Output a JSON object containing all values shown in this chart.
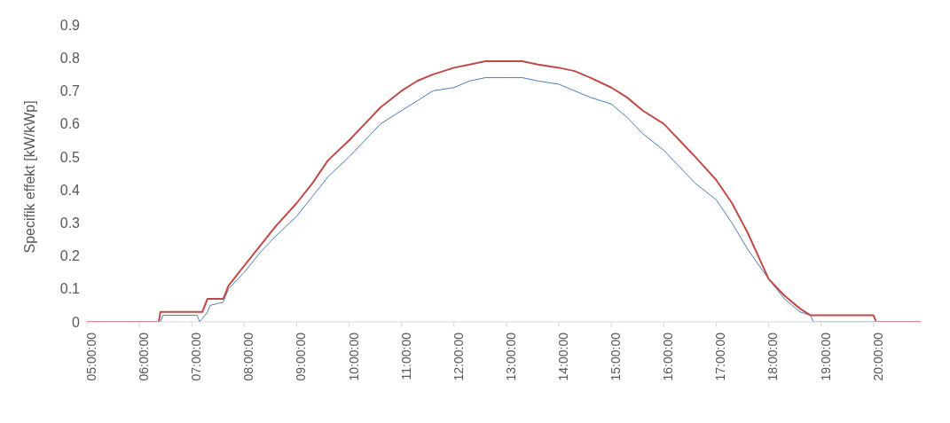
{
  "chart_data": {
    "type": "line",
    "ylabel": "Specifik effekt [kW/kWp]",
    "xlim": [
      5,
      20.9
    ],
    "ylim": [
      0,
      0.9
    ],
    "yticks": [
      0,
      0.1,
      0.2,
      0.3,
      0.4,
      0.5,
      0.6,
      0.7,
      0.8,
      0.9
    ],
    "xticks": [
      {
        "value": 5,
        "label": "05:00:00"
      },
      {
        "value": 6,
        "label": "06:00:00"
      },
      {
        "value": 7,
        "label": "07:00:00"
      },
      {
        "value": 8,
        "label": "08:00:00"
      },
      {
        "value": 9,
        "label": "09:00:00"
      },
      {
        "value": 10,
        "label": "10:00:00"
      },
      {
        "value": 11,
        "label": "11:00:00"
      },
      {
        "value": 12,
        "label": "12:00:00"
      },
      {
        "value": 13,
        "label": "13:00:00"
      },
      {
        "value": 14,
        "label": "14:00:00"
      },
      {
        "value": 15,
        "label": "15:00:00"
      },
      {
        "value": 16,
        "label": "16:00:00"
      },
      {
        "value": 17,
        "label": "17:00:00"
      },
      {
        "value": 18,
        "label": "18:00:00"
      },
      {
        "value": 19,
        "label": "19:00:00"
      },
      {
        "value": 20,
        "label": "20:00:00"
      }
    ],
    "grid": false,
    "marker": "none",
    "line_style": "solid",
    "series": [
      {
        "color": "#4a7ebb",
        "x": [
          5,
          6.4,
          6.45,
          7.1,
          7.15,
          7.3,
          7.35,
          7.6,
          7.7,
          8,
          8.3,
          8.6,
          9,
          9.3,
          9.6,
          10,
          10.3,
          10.6,
          11,
          11.3,
          11.6,
          12,
          12.3,
          12.6,
          13,
          13.3,
          13.6,
          14,
          14.3,
          14.6,
          15,
          15.3,
          15.6,
          16,
          16.3,
          16.6,
          17,
          17.3,
          17.6,
          18,
          18.3,
          18.6,
          18.8,
          18.85,
          20.9
        ],
        "values": [
          0,
          0,
          0.02,
          0.02,
          0,
          0.03,
          0.05,
          0.06,
          0.1,
          0.15,
          0.21,
          0.26,
          0.32,
          0.38,
          0.44,
          0.5,
          0.55,
          0.6,
          0.64,
          0.67,
          0.7,
          0.71,
          0.73,
          0.74,
          0.74,
          0.74,
          0.73,
          0.72,
          0.7,
          0.68,
          0.66,
          0.62,
          0.57,
          0.52,
          0.47,
          0.42,
          0.37,
          0.3,
          0.22,
          0.13,
          0.07,
          0.03,
          0.02,
          0,
          0
        ]
      },
      {
        "color": "#be4b48",
        "x": [
          5,
          6.37,
          6.4,
          7.2,
          7.3,
          7.6,
          7.7,
          8,
          8.3,
          8.6,
          9,
          9.3,
          9.6,
          10,
          10.3,
          10.6,
          11,
          11.3,
          11.6,
          12,
          12.3,
          12.6,
          13,
          13.3,
          13.6,
          14,
          14.3,
          14.6,
          15,
          15.3,
          15.6,
          16,
          16.3,
          16.6,
          17,
          17.3,
          17.6,
          18,
          18.3,
          18.6,
          18.8,
          19,
          19.5,
          20,
          20.05,
          20.9
        ],
        "values": [
          0,
          0,
          0.03,
          0.03,
          0.07,
          0.07,
          0.11,
          0.17,
          0.23,
          0.29,
          0.36,
          0.42,
          0.49,
          0.55,
          0.6,
          0.65,
          0.7,
          0.73,
          0.75,
          0.77,
          0.78,
          0.79,
          0.79,
          0.79,
          0.78,
          0.77,
          0.76,
          0.74,
          0.71,
          0.68,
          0.64,
          0.6,
          0.55,
          0.5,
          0.43,
          0.36,
          0.27,
          0.13,
          0.08,
          0.04,
          0.02,
          0.02,
          0.02,
          0.02,
          0,
          0
        ]
      }
    ]
  }
}
